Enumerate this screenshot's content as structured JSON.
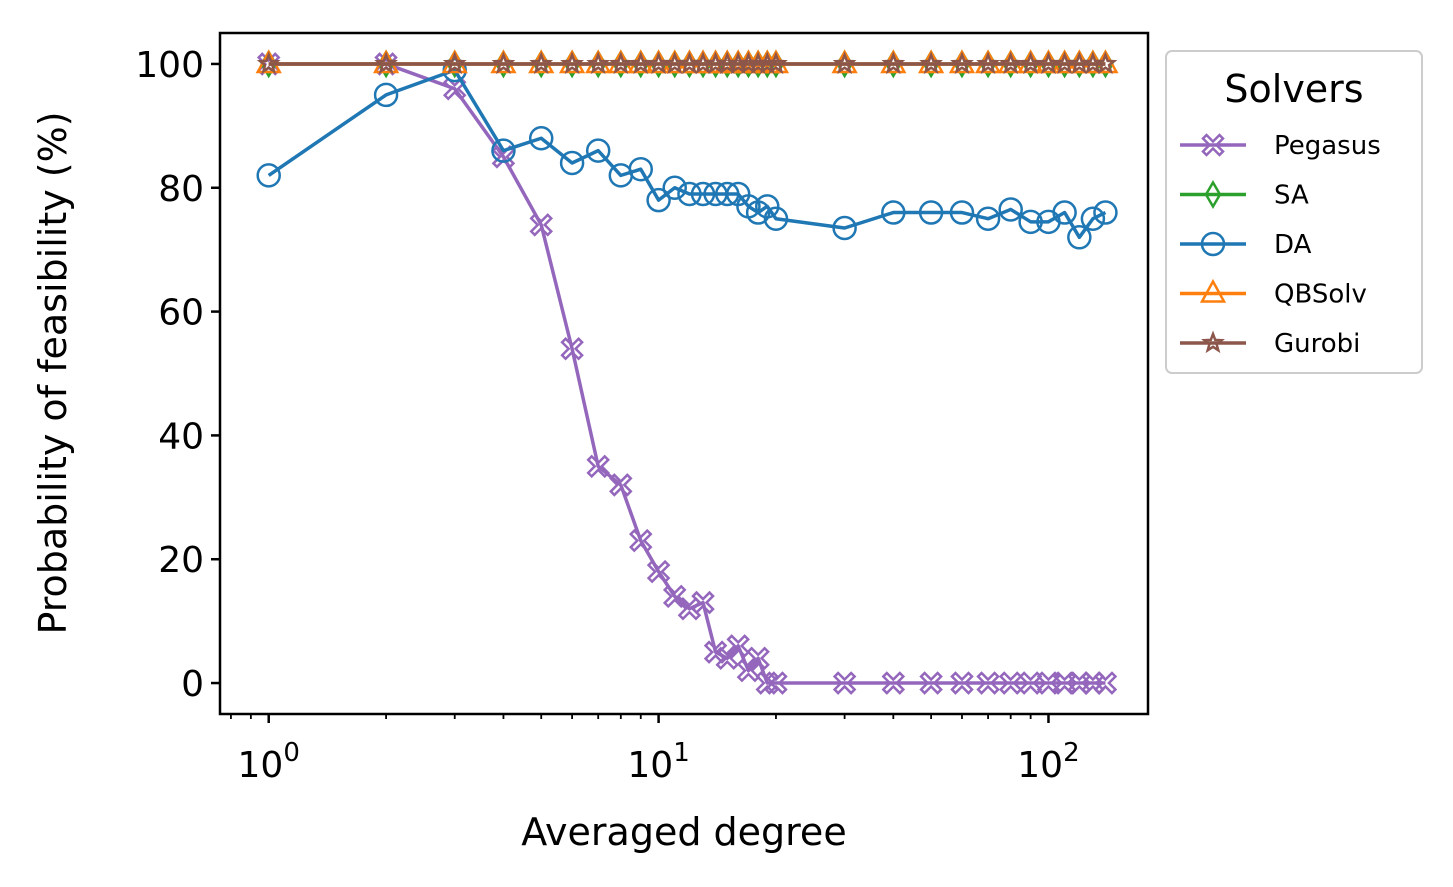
{
  "chart_data": {
    "type": "line",
    "xlabel": "Averaged degree",
    "ylabel": "Probability of feasibility (%)",
    "x_scale": "log",
    "xlim": [
      0.75,
      180
    ],
    "ylim": [
      -5,
      105
    ],
    "yticks": [
      0,
      20,
      40,
      60,
      80,
      100
    ],
    "xticks": [
      {
        "value": 1,
        "base": "10",
        "exp": "0"
      },
      {
        "value": 10,
        "base": "10",
        "exp": "1"
      },
      {
        "value": 100,
        "base": "10",
        "exp": "2"
      }
    ],
    "grid": false,
    "legend": {
      "title": "Solvers",
      "placement": "outside-upper-right"
    },
    "x": [
      1,
      2,
      3,
      4,
      5,
      6,
      7,
      8,
      9,
      10,
      11,
      12,
      13,
      14,
      15,
      16,
      17,
      18,
      19,
      20,
      30,
      40,
      50,
      60,
      70,
      80,
      90,
      100,
      110,
      120,
      130,
      140
    ],
    "series": [
      {
        "name": "Pegasus",
        "color": "#9467bd",
        "marker": "x-filled",
        "values": [
          100,
          100,
          96,
          85,
          74,
          54,
          35,
          32,
          23,
          18,
          14,
          12,
          13,
          5,
          4,
          6,
          2,
          4,
          0,
          0,
          0,
          0,
          0,
          0,
          0,
          0,
          0,
          0,
          0,
          0,
          0,
          0
        ]
      },
      {
        "name": "SA",
        "color": "#2ca02c",
        "marker": "thin-diamond",
        "values": [
          100,
          100,
          100,
          100,
          100,
          100,
          100,
          100,
          100,
          100,
          100,
          100,
          100,
          100,
          100,
          100,
          100,
          100,
          100,
          100,
          100,
          100,
          100,
          100,
          100,
          100,
          100,
          100,
          100,
          100,
          100,
          100
        ]
      },
      {
        "name": "DA",
        "color": "#1f77b4",
        "marker": "circle",
        "values": [
          82,
          95,
          99,
          86,
          88,
          84,
          86,
          82,
          83,
          78,
          80,
          79,
          79,
          79,
          79,
          79,
          77,
          76,
          77,
          75,
          73.5,
          76,
          76,
          76,
          75,
          76.5,
          74.5,
          74.5,
          76,
          72,
          75,
          76
        ]
      },
      {
        "name": "QBSolv",
        "color": "#ff7f0e",
        "marker": "triangle",
        "values": [
          100,
          100,
          100,
          100,
          100,
          100,
          100,
          100,
          100,
          100,
          100,
          100,
          100,
          100,
          100,
          100,
          100,
          100,
          100,
          100,
          100,
          100,
          100,
          100,
          100,
          100,
          100,
          100,
          100,
          100,
          100,
          100
        ]
      },
      {
        "name": "Gurobi",
        "color": "#8c564b",
        "marker": "star",
        "values": [
          100,
          100,
          100,
          100,
          100,
          100,
          100,
          100,
          100,
          100,
          100,
          100,
          100,
          100,
          100,
          100,
          100,
          100,
          100,
          100,
          100,
          100,
          100,
          100,
          100,
          100,
          100,
          100,
          100,
          100,
          100,
          100
        ]
      }
    ]
  }
}
